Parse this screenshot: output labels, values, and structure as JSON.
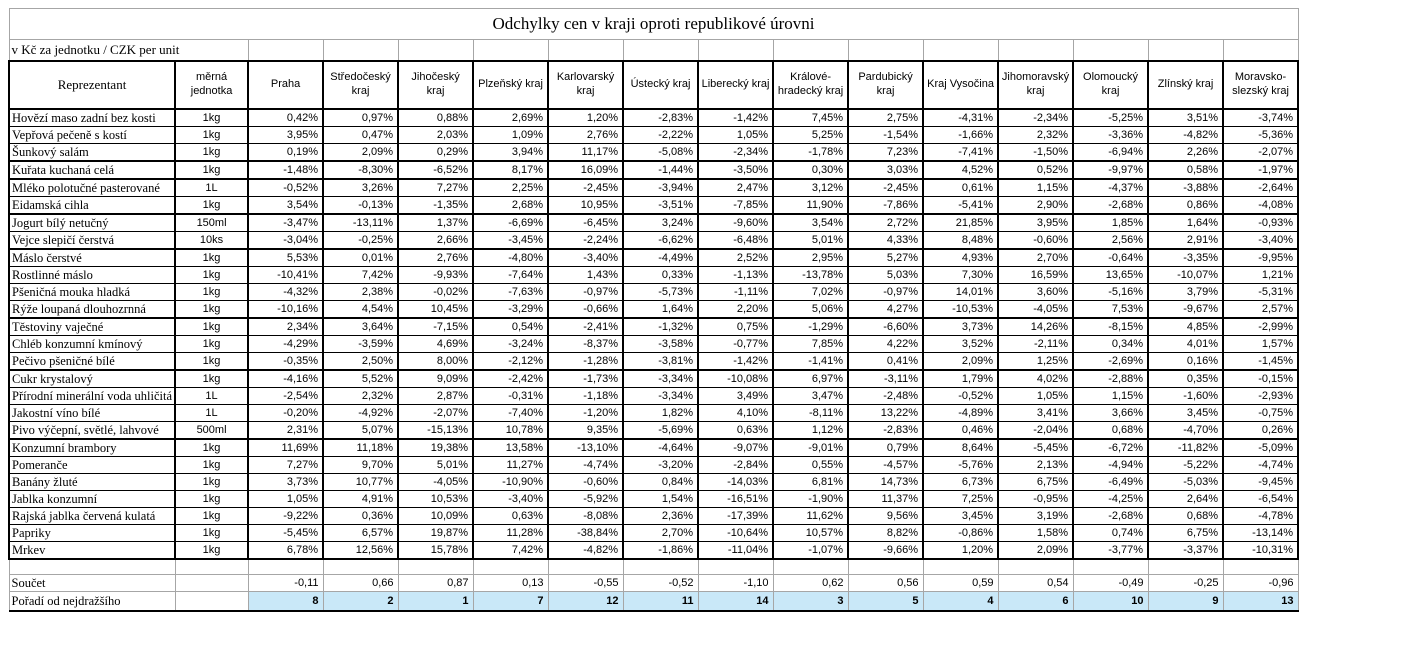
{
  "title": "Odchylky cen v kraji oproti republikové úrovni",
  "subtitle": "v Kč za jednotku / CZK per unit",
  "colors": {
    "rank_highlight": "#c9e8f8",
    "grid_gray": "#a6a6a6",
    "grid_black": "#000000"
  },
  "table": {
    "col_product": "Reprezentant",
    "col_unit": "měrná jednotka",
    "regions": [
      "Praha",
      "Středočeský kraj",
      "Jihočeský kraj",
      "Plzeňský kraj",
      "Karlovarský kraj",
      "Ústecký kraj",
      "Liberecký kraj",
      "Králové-hradecký kraj",
      "Pardubický kraj",
      "Kraj Vysočina",
      "Jihomoravský kraj",
      "Olomoucký kraj",
      "Zlínský kraj",
      "Moravsko-slezský kraj"
    ],
    "rows": [
      {
        "name": "Hovězí maso zadní bez kosti",
        "unit": "1kg",
        "values": [
          "0,42%",
          "0,97%",
          "0,88%",
          "2,69%",
          "1,20%",
          "-2,83%",
          "-1,42%",
          "7,45%",
          "2,75%",
          "-4,31%",
          "-2,34%",
          "-5,25%",
          "3,51%",
          "-3,74%"
        ]
      },
      {
        "name": "Vepřová pečeně s kostí",
        "unit": "1kg",
        "values": [
          "3,95%",
          "0,47%",
          "2,03%",
          "1,09%",
          "2,76%",
          "-2,22%",
          "1,05%",
          "5,25%",
          "-1,54%",
          "-1,66%",
          "2,32%",
          "-3,36%",
          "-4,82%",
          "-5,36%"
        ]
      },
      {
        "name": "Šunkový salám",
        "unit": "1kg",
        "values": [
          "0,19%",
          "2,09%",
          "0,29%",
          "3,94%",
          "11,17%",
          "-5,08%",
          "-2,34%",
          "-1,78%",
          "7,23%",
          "-7,41%",
          "-1,50%",
          "-6,94%",
          "2,26%",
          "-2,07%"
        ]
      },
      {
        "name": "Kuřata kuchaná celá",
        "unit": "1kg",
        "values": [
          "-1,48%",
          "-8,30%",
          "-6,52%",
          "8,17%",
          "16,09%",
          "-1,44%",
          "-3,50%",
          "0,30%",
          "3,03%",
          "4,52%",
          "0,52%",
          "-9,97%",
          "0,58%",
          "-1,97%"
        ]
      },
      {
        "name": "Mléko polotučné pasterované",
        "unit": "1L",
        "values": [
          "-0,52%",
          "3,26%",
          "7,27%",
          "2,25%",
          "-2,45%",
          "-3,94%",
          "2,47%",
          "3,12%",
          "-2,45%",
          "0,61%",
          "1,15%",
          "-4,37%",
          "-3,88%",
          "-2,64%"
        ]
      },
      {
        "name": "Eidamská cihla",
        "unit": "1kg",
        "values": [
          "3,54%",
          "-0,13%",
          "-1,35%",
          "2,68%",
          "10,95%",
          "-3,51%",
          "-7,85%",
          "11,90%",
          "-7,86%",
          "-5,41%",
          "2,90%",
          "-2,68%",
          "0,86%",
          "-4,08%"
        ]
      },
      {
        "name": "Jogurt bílý netučný",
        "unit": "150ml",
        "values": [
          "-3,47%",
          "-13,11%",
          "1,37%",
          "-6,69%",
          "-6,45%",
          "3,24%",
          "-9,60%",
          "3,54%",
          "2,72%",
          "21,85%",
          "3,95%",
          "1,85%",
          "1,64%",
          "-0,93%"
        ]
      },
      {
        "name": "Vejce slepičí čerstvá",
        "unit": "10ks",
        "values": [
          "-3,04%",
          "-0,25%",
          "2,66%",
          "-3,45%",
          "-2,24%",
          "-6,62%",
          "-6,48%",
          "5,01%",
          "4,33%",
          "8,48%",
          "-0,60%",
          "2,56%",
          "2,91%",
          "-3,40%"
        ]
      },
      {
        "name": "Máslo čerstvé",
        "unit": "1kg",
        "values": [
          "5,53%",
          "0,01%",
          "2,76%",
          "-4,80%",
          "-3,40%",
          "-4,49%",
          "2,52%",
          "2,95%",
          "5,27%",
          "4,93%",
          "2,70%",
          "-0,64%",
          "-3,35%",
          "-9,95%"
        ]
      },
      {
        "name": "Rostlinné máslo",
        "unit": "1kg",
        "values": [
          "-10,41%",
          "7,42%",
          "-9,93%",
          "-7,64%",
          "1,43%",
          "0,33%",
          "-1,13%",
          "-13,78%",
          "5,03%",
          "7,30%",
          "16,59%",
          "13,65%",
          "-10,07%",
          "1,21%"
        ]
      },
      {
        "name": "Pšeničná mouka hladká",
        "unit": "1kg",
        "values": [
          "-4,32%",
          "2,38%",
          "-0,02%",
          "-7,63%",
          "-0,97%",
          "-5,73%",
          "-1,11%",
          "7,02%",
          "-0,97%",
          "14,01%",
          "3,60%",
          "-5,16%",
          "3,79%",
          "-5,31%"
        ]
      },
      {
        "name": "Rýže loupaná dlouhozrnná",
        "unit": "1kg",
        "values": [
          "-10,16%",
          "4,54%",
          "10,45%",
          "-3,29%",
          "-0,66%",
          "1,64%",
          "2,20%",
          "5,06%",
          "4,27%",
          "-10,53%",
          "-4,05%",
          "7,53%",
          "-9,67%",
          "2,57%"
        ]
      },
      {
        "name": "Těstoviny vaječné",
        "unit": "1kg",
        "values": [
          "2,34%",
          "3,64%",
          "-7,15%",
          "0,54%",
          "-2,41%",
          "-1,32%",
          "0,75%",
          "-1,29%",
          "-6,60%",
          "3,73%",
          "14,26%",
          "-8,15%",
          "4,85%",
          "-2,99%"
        ]
      },
      {
        "name": "Chléb konzumní kmínový",
        "unit": "1kg",
        "values": [
          "-4,29%",
          "-3,59%",
          "4,69%",
          "-3,24%",
          "-8,37%",
          "-3,58%",
          "-0,77%",
          "7,85%",
          "4,22%",
          "3,52%",
          "-2,11%",
          "0,34%",
          "4,01%",
          "1,57%"
        ]
      },
      {
        "name": "Pečivo pšeničné bílé",
        "unit": "1kg",
        "values": [
          "-0,35%",
          "2,50%",
          "8,00%",
          "-2,12%",
          "-1,28%",
          "-3,81%",
          "-1,42%",
          "-1,41%",
          "0,41%",
          "2,09%",
          "1,25%",
          "-2,69%",
          "0,16%",
          "-1,45%"
        ]
      },
      {
        "name": "Cukr krystalový",
        "unit": "1kg",
        "values": [
          "-4,16%",
          "5,52%",
          "9,09%",
          "-2,42%",
          "-1,73%",
          "-3,34%",
          "-10,08%",
          "6,97%",
          "-3,11%",
          "1,79%",
          "4,02%",
          "-2,88%",
          "0,35%",
          "-0,15%"
        ]
      },
      {
        "name": "Přírodní minerální voda uhličitá",
        "unit": "1L",
        "values": [
          "-2,54%",
          "2,32%",
          "2,87%",
          "-0,31%",
          "-1,18%",
          "-3,34%",
          "3,49%",
          "3,47%",
          "-2,48%",
          "-0,52%",
          "1,05%",
          "1,15%",
          "-1,60%",
          "-2,93%"
        ]
      },
      {
        "name": "Jakostní víno bílé",
        "unit": "1L",
        "values": [
          "-0,20%",
          "-4,92%",
          "-2,07%",
          "-7,40%",
          "-1,20%",
          "1,82%",
          "4,10%",
          "-8,11%",
          "13,22%",
          "-4,89%",
          "3,41%",
          "3,66%",
          "3,45%",
          "-0,75%"
        ]
      },
      {
        "name": "Pivo výčepní, světlé, lahvové",
        "unit": "500ml",
        "values": [
          "2,31%",
          "5,07%",
          "-15,13%",
          "10,78%",
          "9,35%",
          "-5,69%",
          "0,63%",
          "1,12%",
          "-2,83%",
          "0,46%",
          "-2,04%",
          "0,68%",
          "-4,70%",
          "0,26%"
        ]
      },
      {
        "name": "Konzumní brambory",
        "unit": "1kg",
        "values": [
          "11,69%",
          "11,18%",
          "19,38%",
          "13,58%",
          "-13,10%",
          "-4,64%",
          "-9,07%",
          "-9,01%",
          "0,79%",
          "8,64%",
          "-5,45%",
          "-6,72%",
          "-11,82%",
          "-5,09%"
        ]
      },
      {
        "name": "Pomeranče",
        "unit": "1kg",
        "values": [
          "7,27%",
          "9,70%",
          "5,01%",
          "11,27%",
          "-4,74%",
          "-3,20%",
          "-2,84%",
          "0,55%",
          "-4,57%",
          "-5,76%",
          "2,13%",
          "-4,94%",
          "-5,22%",
          "-4,74%"
        ]
      },
      {
        "name": "Banány žluté",
        "unit": "1kg",
        "values": [
          "3,73%",
          "10,77%",
          "-4,05%",
          "-10,90%",
          "-0,60%",
          "0,84%",
          "-14,03%",
          "6,81%",
          "14,73%",
          "6,73%",
          "6,75%",
          "-6,49%",
          "-5,03%",
          "-9,45%"
        ]
      },
      {
        "name": "Jablka konzumní",
        "unit": "1kg",
        "values": [
          "1,05%",
          "4,91%",
          "10,53%",
          "-3,40%",
          "-5,92%",
          "1,54%",
          "-16,51%",
          "-1,90%",
          "11,37%",
          "7,25%",
          "-0,95%",
          "-4,25%",
          "2,64%",
          "-6,54%"
        ]
      },
      {
        "name": "Rajská jablka červená kulatá",
        "unit": "1kg",
        "values": [
          "-9,22%",
          "0,36%",
          "10,09%",
          "0,63%",
          "-8,08%",
          "2,36%",
          "-17,39%",
          "11,62%",
          "9,56%",
          "3,45%",
          "3,19%",
          "-2,68%",
          "0,68%",
          "-4,78%"
        ]
      },
      {
        "name": "Papriky",
        "unit": "1kg",
        "values": [
          "-5,45%",
          "6,57%",
          "19,87%",
          "11,28%",
          "-38,84%",
          "2,70%",
          "-10,64%",
          "10,57%",
          "8,82%",
          "-0,86%",
          "1,58%",
          "0,74%",
          "6,75%",
          "-13,14%"
        ]
      },
      {
        "name": "Mrkev",
        "unit": "1kg",
        "values": [
          "6,78%",
          "12,56%",
          "15,78%",
          "7,42%",
          "-4,82%",
          "-1,86%",
          "-11,04%",
          "-1,07%",
          "-9,66%",
          "1,20%",
          "2,09%",
          "-3,77%",
          "-3,37%",
          "-10,31%"
        ]
      }
    ],
    "summary": {
      "sum_label": "Součet",
      "sum_values": [
        "-0,11",
        "0,66",
        "0,87",
        "0,13",
        "-0,55",
        "-0,52",
        "-1,10",
        "0,62",
        "0,56",
        "0,59",
        "0,54",
        "-0,49",
        "-0,25",
        "-0,96"
      ],
      "rank_label": "Pořadí od nejdražšího",
      "rank_values": [
        "8",
        "2",
        "1",
        "7",
        "12",
        "11",
        "14",
        "3",
        "5",
        "4",
        "6",
        "10",
        "9",
        "13"
      ]
    }
  }
}
